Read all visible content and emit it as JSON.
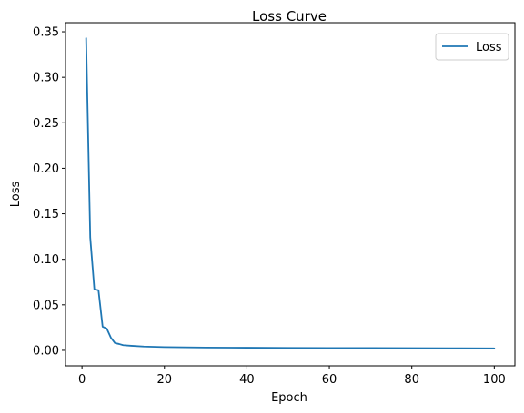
{
  "chart_data": {
    "type": "line",
    "title": "Loss Curve",
    "xlabel": "Epoch",
    "ylabel": "Loss",
    "xlim": [
      -4,
      105
    ],
    "ylim": [
      -0.017,
      0.36
    ],
    "xticks": [
      0,
      20,
      40,
      60,
      80,
      100
    ],
    "xtick_labels": [
      "0",
      "20",
      "40",
      "60",
      "80",
      "100"
    ],
    "yticks": [
      0.0,
      0.05,
      0.1,
      0.15,
      0.2,
      0.25,
      0.3,
      0.35
    ],
    "ytick_labels": [
      "0.00",
      "0.05",
      "0.10",
      "0.15",
      "0.20",
      "0.25",
      "0.30",
      "0.35"
    ],
    "grid": false,
    "legend_position": "top-right",
    "series": [
      {
        "name": "Loss",
        "color": "#1f77b4",
        "x": [
          1,
          2,
          3,
          4,
          5,
          6,
          7,
          8,
          9,
          10,
          12,
          15,
          20,
          25,
          30,
          40,
          50,
          60,
          70,
          80,
          90,
          100
        ],
        "y": [
          0.343,
          0.124,
          0.067,
          0.066,
          0.026,
          0.024,
          0.014,
          0.008,
          0.007,
          0.0057,
          0.005,
          0.0042,
          0.0036,
          0.0033,
          0.0031,
          0.0029,
          0.0027,
          0.0026,
          0.0025,
          0.0024,
          0.0023,
          0.0022
        ]
      }
    ]
  }
}
